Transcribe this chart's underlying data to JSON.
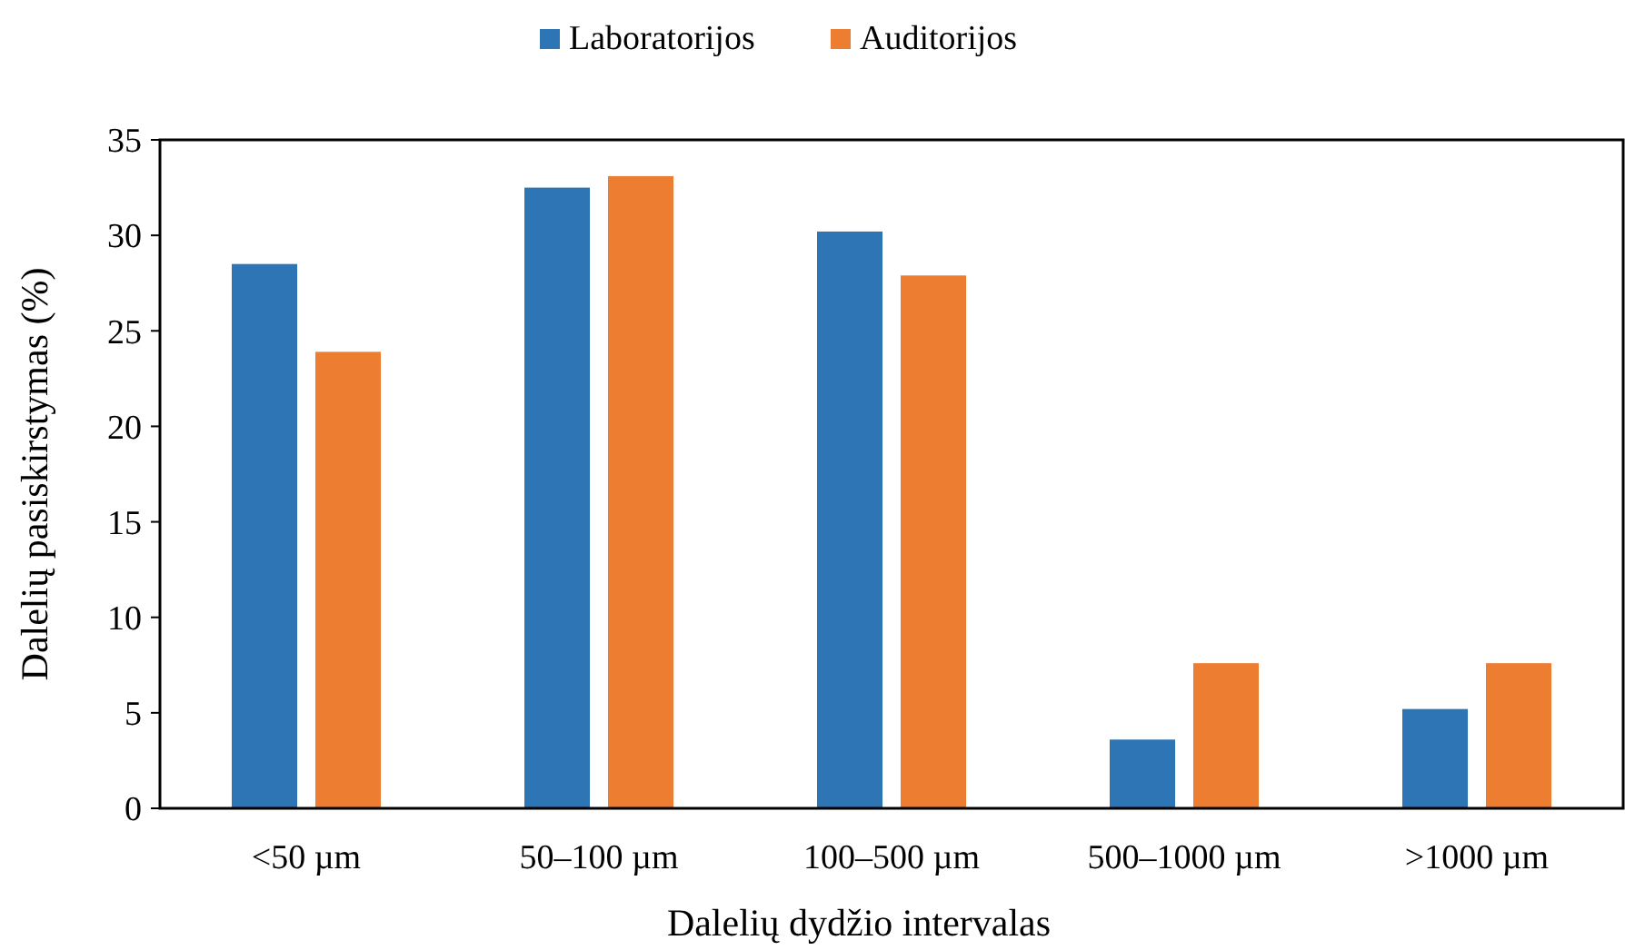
{
  "chart_data": {
    "type": "bar",
    "xlabel": "Dalelių dydžio intervalas",
    "ylabel": "Dalelių pasiskirstymas (%)",
    "categories": [
      "<50 µm",
      "50–100 µm",
      "100–500 µm",
      "500–1000 µm",
      ">1000 µm"
    ],
    "series": [
      {
        "name": "Laboratorijos",
        "color": "#2e75b6",
        "values": [
          28.5,
          32.5,
          30.2,
          3.6,
          5.2
        ]
      },
      {
        "name": "Auditorijos",
        "color": "#ed7d31",
        "values": [
          23.9,
          33.1,
          27.9,
          7.6,
          7.6
        ]
      }
    ],
    "ylim": [
      0,
      35
    ],
    "yticks": [
      0,
      5,
      10,
      15,
      20,
      25,
      30,
      35
    ],
    "grid": false,
    "legend": "top"
  }
}
